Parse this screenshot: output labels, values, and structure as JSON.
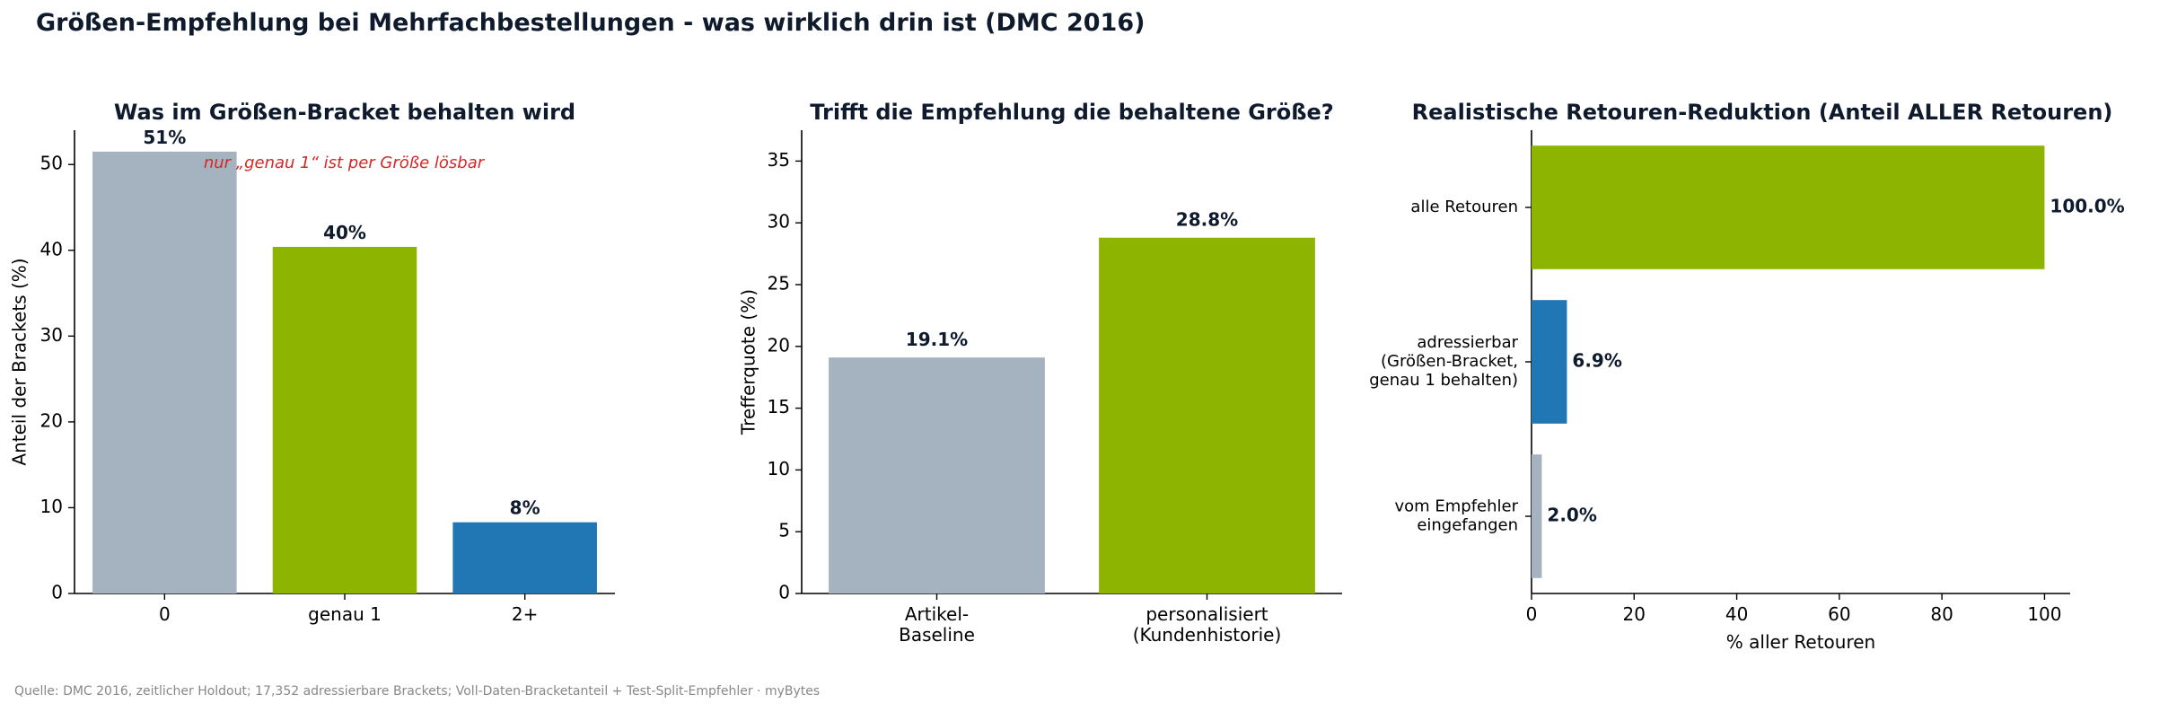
{
  "suptitle": "Größen-Empfehlung bei Mehrfachbestellungen - was wirklich drin ist (DMC 2016)",
  "source": "Quelle: DMC 2016, zeitlicher Holdout; 17,352 adressierbare Brackets; Voll-Daten-Bracketanteil + Test-Split-Empfehler · myBytes",
  "colors": {
    "grey": "#a5b3c0",
    "green": "#8db500",
    "blue": "#2176b4",
    "text": "#0f1b2d",
    "annotation": "#d62728"
  },
  "chart_data": [
    {
      "type": "bar",
      "title": "Was im Größen-Bracket behalten wird",
      "xlabel": "",
      "ylabel": "Anteil der Brackets (%)",
      "categories": [
        "0",
        "genau 1",
        "2+"
      ],
      "values": [
        51.5,
        40.4,
        8.3
      ],
      "value_labels": [
        "51%",
        "40%",
        "8%"
      ],
      "bar_colors": [
        "#a5b3c0",
        "#8db500",
        "#2176b4"
      ],
      "ylim": [
        0,
        54
      ],
      "yticks": [
        "0",
        "10",
        "20",
        "30",
        "40",
        "50"
      ],
      "annotation": "nur „genau 1“ ist per Größe lösbar"
    },
    {
      "type": "bar",
      "title": "Trifft die Empfehlung die behaltene Größe?",
      "xlabel": "",
      "ylabel": "Trefferquote (%)",
      "categories": [
        [
          "Artikel-",
          "Baseline"
        ],
        [
          "personalisiert",
          "(Kundenhistorie)"
        ]
      ],
      "values": [
        19.1,
        28.8
      ],
      "value_labels": [
        "19.1%",
        "28.8%"
      ],
      "bar_colors": [
        "#a5b3c0",
        "#8db500"
      ],
      "ylim": [
        0,
        37.5
      ],
      "yticks": [
        "0",
        "5",
        "10",
        "15",
        "20",
        "25",
        "30",
        "35"
      ]
    },
    {
      "type": "bar",
      "orientation": "horizontal",
      "title": "Realistische Retouren-Reduktion (Anteil ALLER Retouren)",
      "xlabel": "% aller Retouren",
      "ylabel": "",
      "categories": [
        [
          "alle Retouren"
        ],
        [
          "adressierbar",
          "(Größen-Bracket,",
          "genau 1 behalten)"
        ],
        [
          "vom Empfehler",
          "eingefangen"
        ]
      ],
      "values": [
        100.0,
        6.9,
        2.0
      ],
      "value_labels": [
        "100.0%",
        "6.9%",
        "2.0%"
      ],
      "bar_colors": [
        "#8db500",
        "#2176b4",
        "#a5b3c0"
      ],
      "xlim": [
        0,
        105
      ],
      "xticks": [
        "0",
        "20",
        "40",
        "60",
        "80",
        "100"
      ]
    }
  ]
}
